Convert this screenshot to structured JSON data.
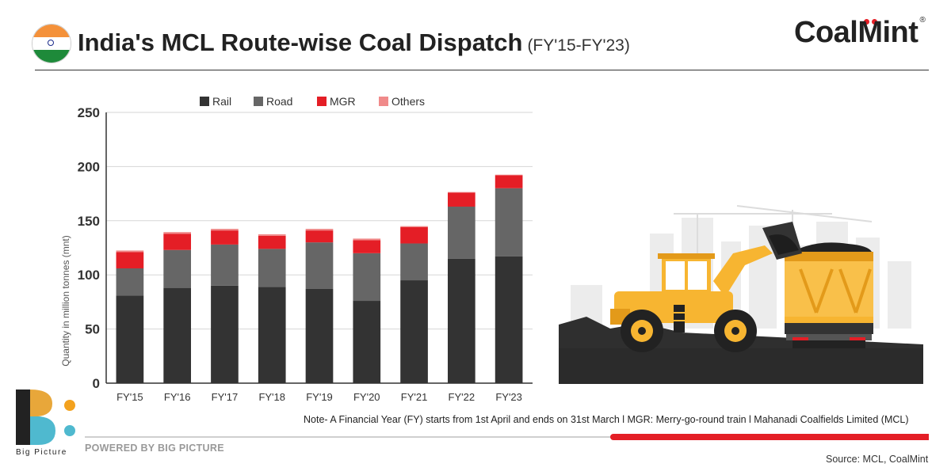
{
  "header": {
    "title": "India's MCL Route-wise Coal Dispatch",
    "subtitle": "(FY'15-FY'23)",
    "brand": "CoalMint",
    "brand_reg": "®"
  },
  "chart_data": {
    "type": "bar",
    "stacked": true,
    "categories": [
      "FY'15",
      "FY'16",
      "FY'17",
      "FY'18",
      "FY'19",
      "FY'20",
      "FY'21",
      "FY'22",
      "FY'23"
    ],
    "series": [
      {
        "name": "Rail",
        "color": "#333333",
        "values": [
          81,
          88,
          90,
          89,
          87,
          76,
          95,
          115,
          117
        ]
      },
      {
        "name": "Road",
        "color": "#666666",
        "values": [
          25,
          35,
          38,
          35,
          43,
          44,
          34,
          48,
          63
        ]
      },
      {
        "name": "MGR",
        "color": "#e41e26",
        "values": [
          15,
          15,
          13,
          12,
          11,
          12,
          15,
          13,
          12
        ]
      },
      {
        "name": "Others",
        "color": "#f08a8a",
        "values": [
          1.5,
          1.5,
          1.5,
          1.5,
          1.5,
          1.5,
          1,
          0.5,
          0.5
        ]
      }
    ],
    "ylabel": "Quantity in million tonnes (mnt)",
    "xlabel": "",
    "ylim": [
      0,
      250
    ],
    "yticks": [
      0,
      50,
      100,
      150,
      200,
      250
    ],
    "grid": true,
    "legend": "top-center"
  },
  "footer": {
    "note": "Note- A Financial Year (FY) starts from 1st April and ends on 31st March  l  MGR: Merry-go-round train  l  Mahanadi Coalfields Limited (MCL)",
    "powered_by": "POWERED BY BIG PICTURE",
    "logo_name": "Big Picture",
    "source": "Source: MCL, CoalMint"
  },
  "icons": {
    "flag": "india-flag-icon",
    "illustration": "loader-and-dump-truck-illustration"
  }
}
